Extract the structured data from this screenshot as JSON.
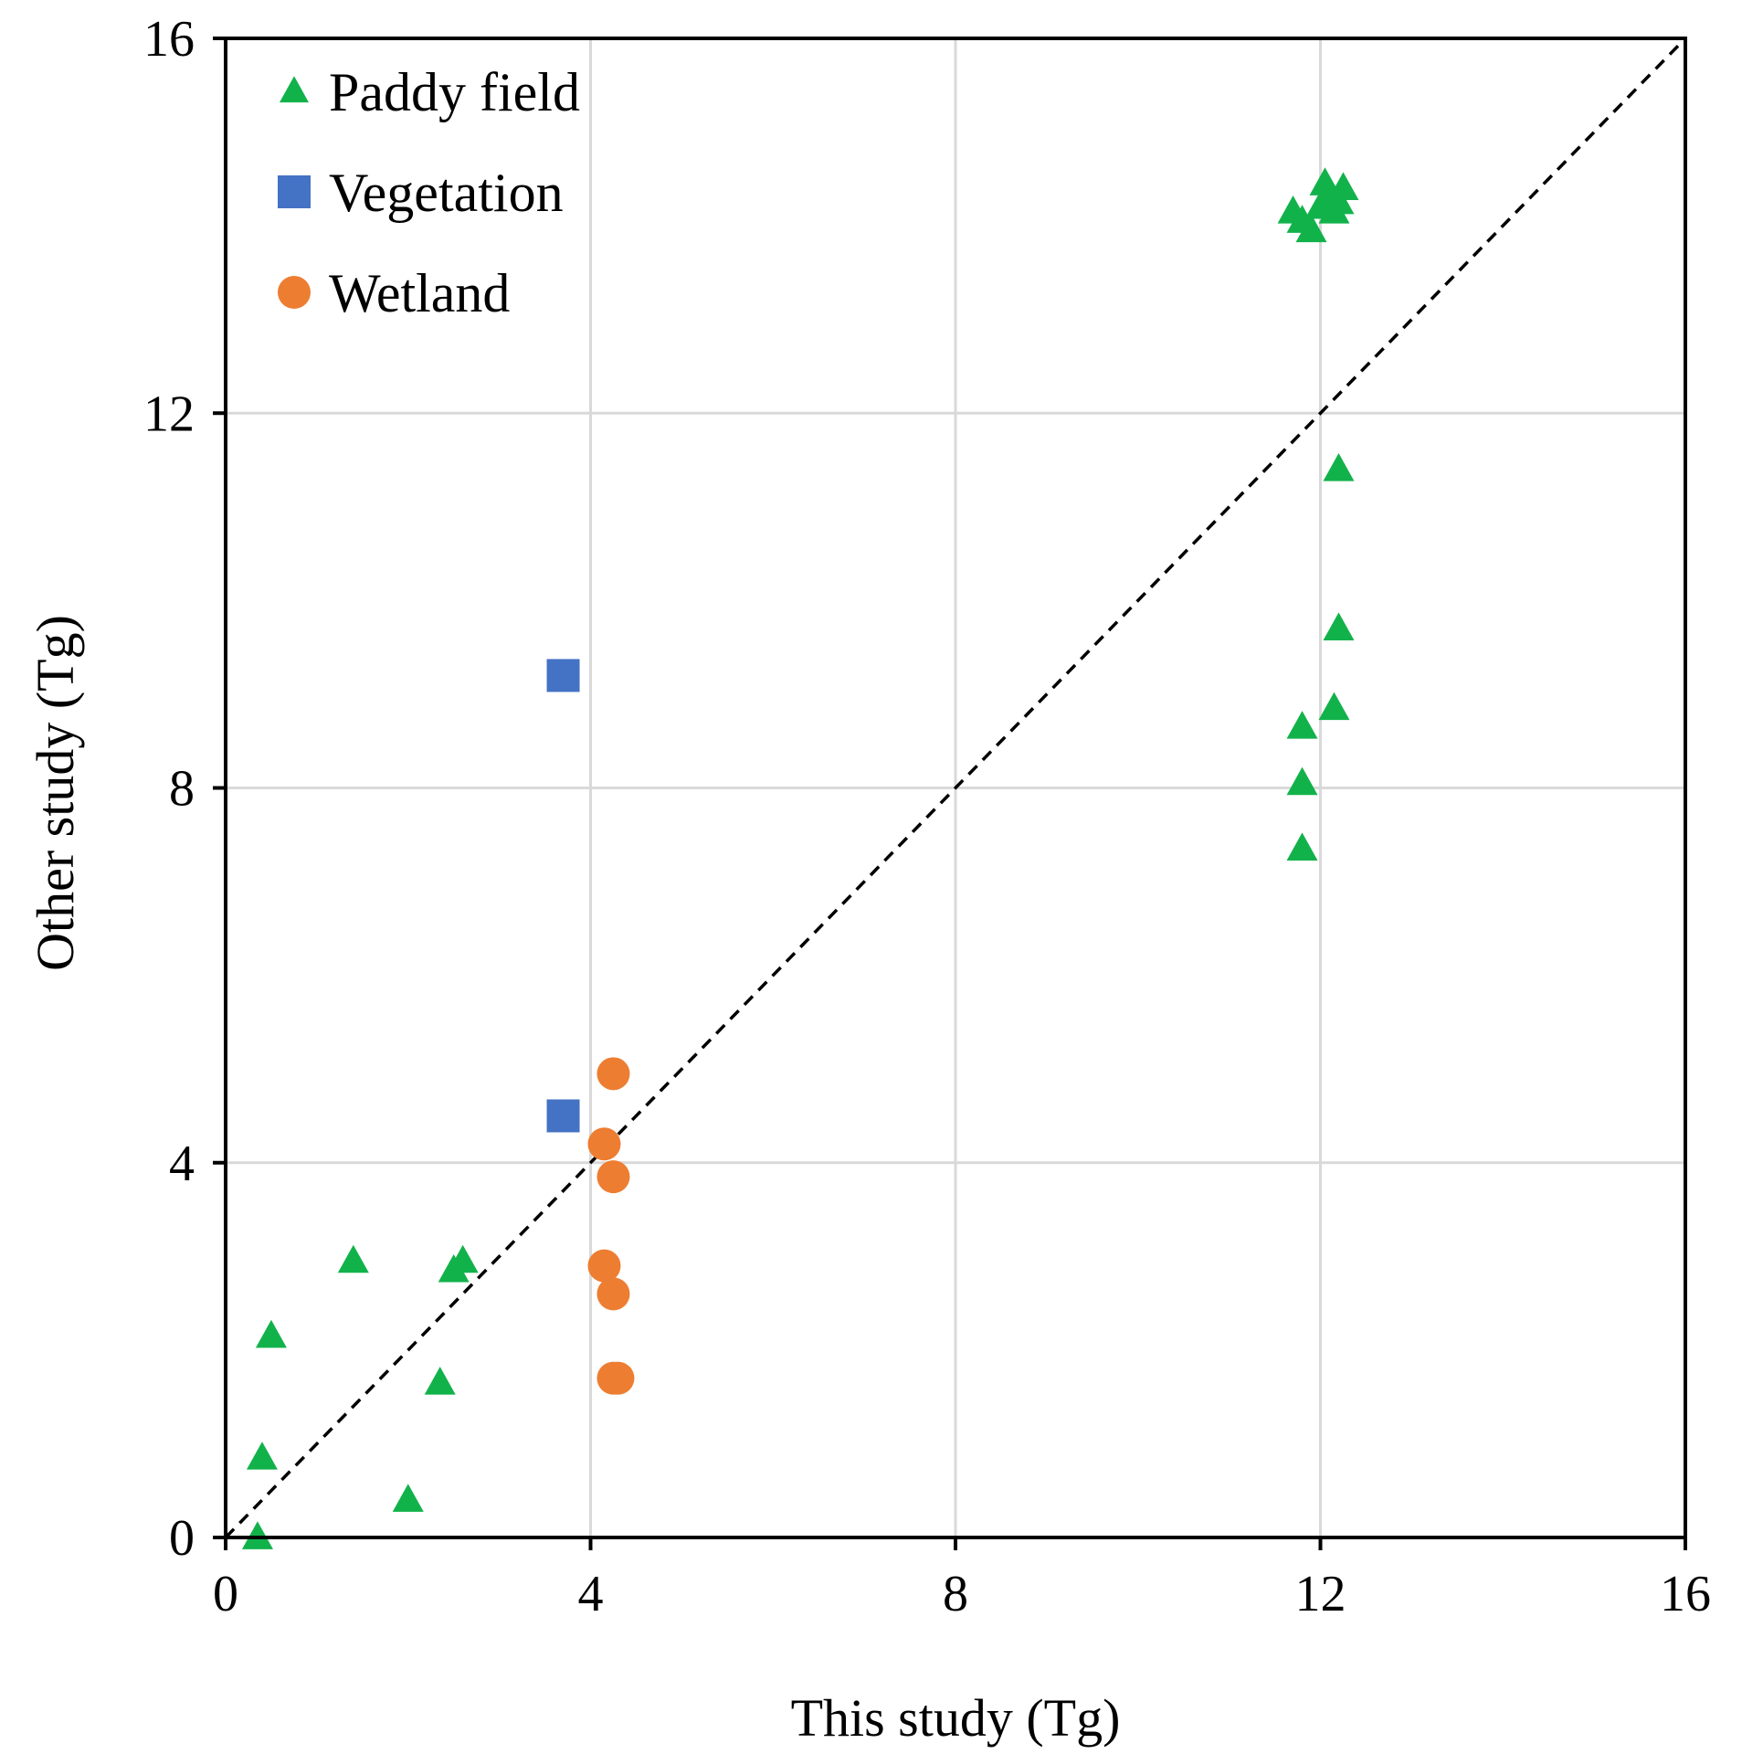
{
  "chart_data": {
    "type": "scatter",
    "xlabel": "This study (Tg)",
    "ylabel": "Other study (Tg)",
    "xlim": [
      0,
      16
    ],
    "ylim": [
      0,
      16
    ],
    "xticks": [
      0,
      4,
      8,
      12,
      16
    ],
    "yticks": [
      0,
      4,
      8,
      12,
      16
    ],
    "grid": true,
    "legend_position": "top-left",
    "reference_line": {
      "type": "1:1",
      "style": "dashed",
      "color": "#000000"
    },
    "series": [
      {
        "name": "Paddy field",
        "marker": "triangle",
        "color": "#12B24B",
        "points": [
          [
            0.35,
            0.0
          ],
          [
            0.4,
            0.85
          ],
          [
            0.5,
            2.15
          ],
          [
            1.4,
            2.95
          ],
          [
            2.0,
            0.4
          ],
          [
            2.35,
            1.65
          ],
          [
            2.5,
            2.85
          ],
          [
            2.6,
            2.95
          ],
          [
            11.7,
            14.15
          ],
          [
            11.8,
            14.05
          ],
          [
            11.9,
            13.95
          ],
          [
            12.0,
            14.2
          ],
          [
            12.05,
            14.45
          ],
          [
            12.1,
            14.3
          ],
          [
            12.15,
            14.15
          ],
          [
            12.2,
            14.25
          ],
          [
            12.25,
            14.4
          ],
          [
            11.8,
            7.35
          ],
          [
            11.8,
            8.05
          ],
          [
            11.8,
            8.65
          ],
          [
            12.15,
            8.85
          ],
          [
            12.2,
            9.7
          ],
          [
            12.2,
            11.4
          ]
        ]
      },
      {
        "name": "Vegetation",
        "marker": "square",
        "color": "#4472C4",
        "points": [
          [
            3.7,
            4.5
          ],
          [
            3.7,
            9.2
          ]
        ]
      },
      {
        "name": "Wetland",
        "marker": "circle",
        "color": "#ED7D31",
        "points": [
          [
            4.15,
            4.2
          ],
          [
            4.15,
            2.9
          ],
          [
            4.25,
            4.95
          ],
          [
            4.25,
            3.85
          ],
          [
            4.25,
            2.6
          ],
          [
            4.25,
            1.7
          ],
          [
            4.3,
            1.7
          ]
        ]
      }
    ]
  }
}
